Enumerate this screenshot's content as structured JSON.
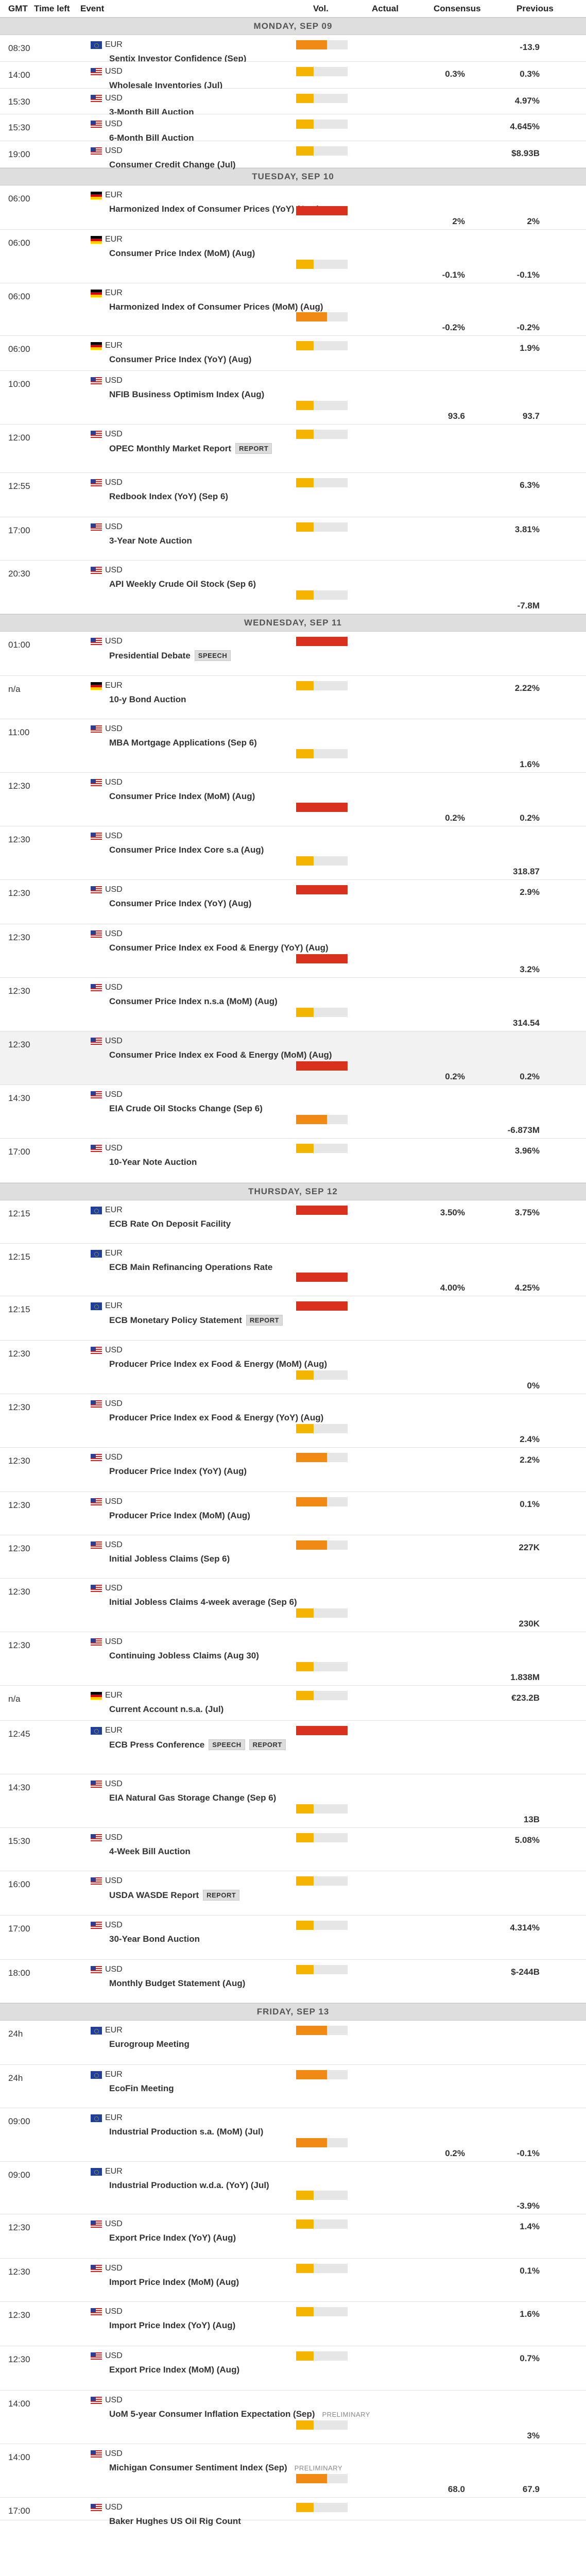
{
  "header": {
    "gmt": "GMT",
    "time_left": "Time left",
    "event": "Event",
    "vol": "Vol.",
    "actual": "Actual",
    "consensus": "Consensus",
    "previous": "Previous"
  },
  "days": [
    {
      "label": "MONDAY, SEP 09",
      "events": [
        {
          "time": "08:30",
          "cur": "EUR",
          "flag": "eu",
          "name": "Sentix Investor Confidence (Sep)",
          "vol": "med",
          "prev": "-13.9",
          "h": 52,
          "pos": "top"
        },
        {
          "time": "14:00",
          "cur": "USD",
          "flag": "us",
          "name": "Wholesale Inventories (Jul)",
          "vol": "low",
          "cons": "0.3%",
          "prev": "0.3%",
          "h": 52,
          "pos": "top"
        },
        {
          "time": "15:30",
          "cur": "USD",
          "flag": "us",
          "name": "3-Month Bill Auction",
          "vol": "low",
          "prev": "4.97%",
          "h": 50,
          "pos": "top"
        },
        {
          "time": "15:30",
          "cur": "USD",
          "flag": "us",
          "name": "6-Month Bill Auction",
          "vol": "low",
          "prev": "4.645%",
          "h": 52,
          "pos": "top"
        },
        {
          "time": "19:00",
          "cur": "USD",
          "flag": "us",
          "name": "Consumer Credit Change (Jul)",
          "vol": "low",
          "prev": "$8.93B",
          "h": 52,
          "pos": "top"
        }
      ]
    },
    {
      "label": "TUESDAY, SEP 10",
      "events": [
        {
          "time": "06:00",
          "cur": "EUR",
          "flag": "de",
          "name": "Harmonized Index of Consumer Prices (YoY) (Aug)",
          "vol": "high",
          "cons": "2%",
          "prev": "2%",
          "h": 86,
          "pos": "bottom"
        },
        {
          "time": "06:00",
          "cur": "EUR",
          "flag": "de",
          "name": "Consumer Price Index (MoM) (Aug)",
          "vol": "low",
          "cons": "-0.1%",
          "prev": "-0.1%",
          "h": 104,
          "pos": "bottom"
        },
        {
          "time": "06:00",
          "cur": "EUR",
          "flag": "de",
          "name": "Harmonized Index of Consumer Prices (MoM) (Aug)",
          "vol": "med",
          "cons": "-0.2%",
          "prev": "-0.2%",
          "h": 102,
          "pos": "bottom"
        },
        {
          "time": "06:00",
          "cur": "EUR",
          "flag": "de",
          "name": "Consumer Price Index (YoY) (Aug)",
          "vol": "low",
          "prev": "1.9%",
          "h": 68,
          "pos": "top"
        },
        {
          "time": "10:00",
          "cur": "USD",
          "flag": "us",
          "name": "NFIB Business Optimism Index (Aug)",
          "vol": "low",
          "cons": "93.6",
          "prev": "93.7",
          "h": 104,
          "pos": "bottom"
        },
        {
          "time": "12:00",
          "cur": "USD",
          "flag": "us",
          "name": "OPEC Monthly Market Report",
          "tag": "REPORT",
          "vol": "low",
          "h": 94,
          "pos": "top"
        },
        {
          "time": "12:55",
          "cur": "USD",
          "flag": "us",
          "name": "Redbook Index (YoY) (Sep 6)",
          "vol": "low",
          "prev": "6.3%",
          "h": 86,
          "pos": "top"
        },
        {
          "time": "17:00",
          "cur": "USD",
          "flag": "us",
          "name": "3-Year Note Auction",
          "vol": "low",
          "prev": "3.81%",
          "h": 84,
          "pos": "top"
        },
        {
          "time": "20:30",
          "cur": "USD",
          "flag": "us",
          "name": "API Weekly Crude Oil Stock (Sep 6)",
          "vol": "low",
          "prev": "-7.8M",
          "h": 104,
          "pos": "bottom"
        }
      ]
    },
    {
      "label": "WEDNESDAY, SEP 11",
      "events": [
        {
          "time": "01:00",
          "cur": "USD",
          "flag": "us",
          "name": "Presidential Debate",
          "tag": "SPEECH",
          "vol": "high",
          "h": 86,
          "pos": "top"
        },
        {
          "time": "n/a",
          "cur": "EUR",
          "flag": "de",
          "name": "10-y Bond Auction",
          "vol": "low",
          "prev": "2.22%",
          "h": 84,
          "pos": "top"
        },
        {
          "time": "11:00",
          "cur": "USD",
          "flag": "us",
          "name": "MBA Mortgage Applications (Sep 6)",
          "vol": "low",
          "prev": "1.6%",
          "h": 104,
          "pos": "bottom"
        },
        {
          "time": "12:30",
          "cur": "USD",
          "flag": "us",
          "name": "Consumer Price Index (MoM) (Aug)",
          "vol": "high",
          "cons": "0.2%",
          "prev": "0.2%",
          "h": 104,
          "pos": "bottom"
        },
        {
          "time": "12:30",
          "cur": "USD",
          "flag": "us",
          "name": "Consumer Price Index Core s.a (Aug)",
          "vol": "low",
          "prev": "318.87",
          "h": 104,
          "pos": "bottom"
        },
        {
          "time": "12:30",
          "cur": "USD",
          "flag": "us",
          "name": "Consumer Price Index (YoY) (Aug)",
          "vol": "high",
          "prev": "2.9%",
          "h": 86,
          "pos": "top"
        },
        {
          "time": "12:30",
          "cur": "USD",
          "flag": "us",
          "name": "Consumer Price Index ex Food & Energy (YoY) (Aug)",
          "vol": "high",
          "prev": "3.2%",
          "h": 104,
          "pos": "bottom"
        },
        {
          "time": "12:30",
          "cur": "USD",
          "flag": "us",
          "name": "Consumer Price Index n.s.a (MoM) (Aug)",
          "vol": "low",
          "prev": "314.54",
          "h": 104,
          "pos": "bottom"
        },
        {
          "time": "12:30",
          "cur": "USD",
          "flag": "us",
          "name": "Consumer Price Index ex Food & Energy (MoM) (Aug)",
          "vol": "high",
          "cons": "0.2%",
          "prev": "0.2%",
          "h": 104,
          "pos": "bottom",
          "alt": true
        },
        {
          "time": "14:30",
          "cur": "USD",
          "flag": "us",
          "name": "EIA Crude Oil Stocks Change (Sep 6)",
          "vol": "med",
          "prev": "-6.873M",
          "h": 104,
          "pos": "bottom"
        },
        {
          "time": "17:00",
          "cur": "USD",
          "flag": "us",
          "name": "10-Year Note Auction",
          "vol": "low",
          "prev": "3.96%",
          "h": 86,
          "pos": "top"
        }
      ]
    },
    {
      "label": "THURSDAY, SEP 12",
      "events": [
        {
          "time": "12:15",
          "cur": "EUR",
          "flag": "eu",
          "name": "ECB Rate On Deposit Facility",
          "vol": "high",
          "cons": "3.50%",
          "prev": "3.75%",
          "h": 84,
          "pos": "top"
        },
        {
          "time": "12:15",
          "cur": "EUR",
          "flag": "eu",
          "name": "ECB Main Refinancing Operations Rate",
          "vol": "high",
          "cons": "4.00%",
          "prev": "4.25%",
          "h": 102,
          "pos": "bottom"
        },
        {
          "time": "12:15",
          "cur": "EUR",
          "flag": "eu",
          "name": "ECB Monetary Policy Statement",
          "tag": "REPORT",
          "vol": "high",
          "h": 86,
          "pos": "top"
        },
        {
          "time": "12:30",
          "cur": "USD",
          "flag": "us",
          "name": "Producer Price Index ex Food & Energy (MoM) (Aug)",
          "vol": "low",
          "prev": "0%",
          "h": 104,
          "pos": "bottom"
        },
        {
          "time": "12:30",
          "cur": "USD",
          "flag": "us",
          "name": "Producer Price Index ex Food & Energy (YoY) (Aug)",
          "vol": "low",
          "prev": "2.4%",
          "h": 104,
          "pos": "bottom"
        },
        {
          "time": "12:30",
          "cur": "USD",
          "flag": "us",
          "name": "Producer Price Index (YoY) (Aug)",
          "vol": "med",
          "prev": "2.2%",
          "h": 86,
          "pos": "top"
        },
        {
          "time": "12:30",
          "cur": "USD",
          "flag": "us",
          "name": "Producer Price Index (MoM) (Aug)",
          "vol": "med",
          "prev": "0.1%",
          "h": 84,
          "pos": "top"
        },
        {
          "time": "12:30",
          "cur": "USD",
          "flag": "us",
          "name": "Initial Jobless Claims (Sep 6)",
          "vol": "med",
          "prev": "227K",
          "h": 84,
          "pos": "top"
        },
        {
          "time": "12:30",
          "cur": "USD",
          "flag": "us",
          "name": "Initial Jobless Claims 4-week average (Sep 6)",
          "vol": "low",
          "prev": "230K",
          "h": 104,
          "pos": "bottom"
        },
        {
          "time": "12:30",
          "cur": "USD",
          "flag": "us",
          "name": "Continuing Jobless Claims (Aug 30)",
          "vol": "low",
          "prev": "1.838M",
          "h": 104,
          "pos": "bottom"
        },
        {
          "time": "n/a",
          "cur": "EUR",
          "flag": "de",
          "name": "Current Account n.s.a. (Jul)",
          "vol": "low",
          "prev": "€23.2B",
          "h": 68,
          "pos": "top"
        },
        {
          "time": "12:45",
          "cur": "EUR",
          "flag": "eu",
          "name": "ECB Press Conference",
          "tag": "SPEECH",
          "tag2": "REPORT",
          "vol": "high",
          "h": 104,
          "pos": "top"
        },
        {
          "time": "14:30",
          "cur": "USD",
          "flag": "us",
          "name": "EIA Natural Gas Storage Change (Sep 6)",
          "vol": "low",
          "prev": "13B",
          "h": 104,
          "pos": "bottom"
        },
        {
          "time": "15:30",
          "cur": "USD",
          "flag": "us",
          "name": "4-Week Bill Auction",
          "vol": "low",
          "prev": "5.08%",
          "h": 84,
          "pos": "top"
        },
        {
          "time": "16:00",
          "cur": "USD",
          "flag": "us",
          "name": "USDA WASDE Report",
          "tag": "REPORT",
          "vol": "low",
          "h": 86,
          "pos": "top"
        },
        {
          "time": "17:00",
          "cur": "USD",
          "flag": "us",
          "name": "30-Year Bond Auction",
          "vol": "low",
          "prev": "4.314%",
          "h": 86,
          "pos": "top"
        },
        {
          "time": "18:00",
          "cur": "USD",
          "flag": "us",
          "name": "Monthly Budget Statement (Aug)",
          "vol": "low",
          "prev": "$-244B",
          "h": 84,
          "pos": "top"
        }
      ]
    },
    {
      "label": "FRIDAY, SEP 13",
      "events": [
        {
          "time": "24h",
          "cur": "EUR",
          "flag": "eu",
          "name": "Eurogroup Meeting",
          "vol": "med",
          "h": 86,
          "pos": "top"
        },
        {
          "time": "24h",
          "cur": "EUR",
          "flag": "eu",
          "name": "EcoFin Meeting",
          "vol": "med",
          "h": 84,
          "pos": "top"
        },
        {
          "time": "09:00",
          "cur": "EUR",
          "flag": "eu",
          "name": "Industrial Production s.a. (MoM) (Jul)",
          "vol": "med",
          "cons": "0.2%",
          "prev": "-0.1%",
          "h": 104,
          "pos": "bottom"
        },
        {
          "time": "09:00",
          "cur": "EUR",
          "flag": "eu",
          "name": "Industrial Production w.d.a. (YoY) (Jul)",
          "vol": "low",
          "prev": "-3.9%",
          "h": 102,
          "pos": "bottom"
        },
        {
          "time": "12:30",
          "cur": "USD",
          "flag": "us",
          "name": "Export Price Index (YoY) (Aug)",
          "vol": "low",
          "prev": "1.4%",
          "h": 86,
          "pos": "top"
        },
        {
          "time": "12:30",
          "cur": "USD",
          "flag": "us",
          "name": "Import Price Index (MoM) (Aug)",
          "vol": "low",
          "prev": "0.1%",
          "h": 84,
          "pos": "top"
        },
        {
          "time": "12:30",
          "cur": "USD",
          "flag": "us",
          "name": "Import Price Index (YoY) (Aug)",
          "vol": "low",
          "prev": "1.6%",
          "h": 86,
          "pos": "top"
        },
        {
          "time": "12:30",
          "cur": "USD",
          "flag": "us",
          "name": "Export Price Index (MoM) (Aug)",
          "vol": "low",
          "prev": "0.7%",
          "h": 86,
          "pos": "top"
        },
        {
          "time": "14:00",
          "cur": "USD",
          "flag": "us",
          "name": "UoM 5-year Consumer Inflation Expectation (Sep)",
          "tag": "PRELIMINARY",
          "tagpre": true,
          "vol": "low",
          "prev": "3%",
          "h": 104,
          "pos": "bottom"
        },
        {
          "time": "14:00",
          "cur": "USD",
          "flag": "us",
          "name": "Michigan Consumer Sentiment Index (Sep)",
          "tag": "PRELIMINARY",
          "tagpre": true,
          "vol": "med",
          "cons": "68.0",
          "prev": "67.9",
          "h": 104,
          "pos": "bottom"
        },
        {
          "time": "17:00",
          "cur": "USD",
          "flag": "us",
          "name": "Baker Hughes US Oil Rig Count",
          "vol": "low",
          "h": 44,
          "pos": "top"
        }
      ]
    }
  ]
}
